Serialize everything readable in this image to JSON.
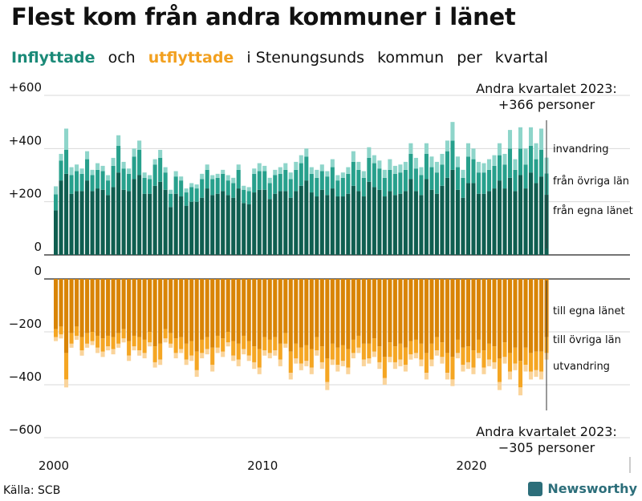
{
  "title": "Flest kom från andra kommuner i länet",
  "subtitle": {
    "part1": "Inflyttade",
    "part2": "och",
    "part3": "utflyttade",
    "part4": "i Stenungsunds",
    "part5": "kommun",
    "part6": "per",
    "part7": "kvartal"
  },
  "source": "Källa: SCB",
  "brand": "Newsworthy",
  "annotations": {
    "top_line1": "Andra kvartalet 2023:",
    "top_line2": "+366 personer",
    "bottom_line1": "Andra kvartalet 2023:",
    "bottom_line2": "−305 personer"
  },
  "colors": {
    "in_local": "#0f5e50",
    "in_county": "#27a08c",
    "in_immigration": "#8ed5ca",
    "out_local": "#d98405",
    "out_county": "#f5a623",
    "out_emigration": "#fad49b",
    "subtitle_in": "#1b8a78",
    "subtitle_out": "#f2a01f"
  },
  "chart_data": {
    "type": "bar",
    "stacked": true,
    "x_start": "2000 Q1",
    "x_end": "2023 Q2",
    "quarters_per_year": 4,
    "x_ticks": [
      "2000",
      "2010",
      "2020"
    ],
    "y_ticks": [
      "+600",
      "+400",
      "+200",
      "0",
      "0",
      "−200",
      "−400",
      "−600"
    ],
    "ylim_in": [
      0,
      600
    ],
    "ylim_out": [
      -600,
      0
    ],
    "grid": true,
    "legend_in": [
      "invandring",
      "från övriga län",
      "från egna länet"
    ],
    "legend_out": [
      "till egna länet",
      "till övriga län",
      "utvandring"
    ],
    "inflow_totals": [
      258,
      380,
      475,
      330,
      340,
      325,
      390,
      320,
      345,
      335,
      300,
      365,
      450,
      350,
      325,
      400,
      430,
      310,
      300,
      360,
      395,
      330,
      245,
      315,
      295,
      250,
      270,
      265,
      305,
      340,
      300,
      305,
      320,
      300,
      290,
      340,
      260,
      255,
      325,
      345,
      335,
      290,
      320,
      330,
      345,
      310,
      350,
      375,
      400,
      330,
      320,
      340,
      315,
      360,
      300,
      310,
      330,
      390,
      350,
      315,
      405,
      375,
      355,
      320,
      360,
      335,
      340,
      350,
      420,
      365,
      330,
      420,
      370,
      350,
      380,
      430,
      500,
      370,
      320,
      420,
      400,
      350,
      345,
      360,
      375,
      420,
      380,
      470,
      360,
      480,
      400,
      480,
      420,
      475,
      366
    ],
    "inflow_immigration": [
      30,
      25,
      80,
      30,
      25,
      20,
      30,
      20,
      25,
      20,
      20,
      30,
      40,
      25,
      20,
      30,
      35,
      20,
      15,
      20,
      30,
      20,
      15,
      20,
      15,
      15,
      15,
      15,
      20,
      20,
      15,
      15,
      15,
      20,
      20,
      20,
      15,
      15,
      20,
      30,
      20,
      20,
      20,
      25,
      25,
      25,
      30,
      30,
      30,
      25,
      30,
      25,
      20,
      30,
      20,
      20,
      25,
      40,
      30,
      25,
      40,
      30,
      30,
      30,
      40,
      30,
      30,
      30,
      40,
      40,
      30,
      40,
      40,
      40,
      40,
      40,
      70,
      40,
      30,
      50,
      40,
      40,
      35,
      40,
      40,
      45,
      40,
      70,
      40,
      80,
      60,
      70,
      60,
      80,
      60
    ],
    "inflow_county": [
      60,
      75,
      90,
      70,
      75,
      65,
      80,
      60,
      70,
      70,
      55,
      80,
      100,
      80,
      65,
      85,
      95,
      60,
      55,
      80,
      90,
      65,
      50,
      65,
      60,
      50,
      55,
      50,
      70,
      70,
      60,
      60,
      65,
      55,
      55,
      70,
      50,
      50,
      70,
      70,
      70,
      60,
      70,
      65,
      80,
      70,
      80,
      85,
      90,
      70,
      70,
      70,
      70,
      80,
      60,
      70,
      75,
      90,
      80,
      70,
      90,
      90,
      80,
      70,
      80,
      80,
      80,
      80,
      95,
      85,
      75,
      95,
      85,
      80,
      80,
      100,
      110,
      85,
      75,
      100,
      90,
      80,
      80,
      80,
      85,
      95,
      90,
      110,
      80,
      100,
      90,
      100,
      90,
      100,
      80
    ],
    "outflow_totals": [
      235,
      225,
      410,
      260,
      230,
      290,
      260,
      250,
      280,
      295,
      270,
      285,
      260,
      240,
      310,
      270,
      290,
      300,
      255,
      335,
      325,
      240,
      260,
      300,
      280,
      325,
      310,
      370,
      300,
      285,
      350,
      280,
      295,
      255,
      310,
      330,
      285,
      310,
      340,
      360,
      290,
      300,
      290,
      330,
      260,
      380,
      320,
      345,
      330,
      360,
      290,
      340,
      420,
      325,
      350,
      330,
      360,
      300,
      280,
      330,
      320,
      295,
      340,
      400,
      315,
      340,
      330,
      350,
      305,
      300,
      330,
      380,
      330,
      290,
      320,
      380,
      405,
      300,
      350,
      340,
      360,
      300,
      360,
      330,
      340,
      420,
      320,
      380,
      345,
      440,
      350,
      380,
      370,
      380,
      305
    ],
    "outflow_emigration": [
      15,
      15,
      30,
      15,
      15,
      20,
      15,
      15,
      20,
      20,
      15,
      20,
      15,
      15,
      20,
      15,
      20,
      20,
      15,
      20,
      20,
      15,
      15,
      20,
      15,
      20,
      20,
      25,
      20,
      20,
      25,
      20,
      20,
      15,
      20,
      25,
      20,
      20,
      25,
      25,
      20,
      20,
      20,
      25,
      15,
      25,
      20,
      25,
      20,
      25,
      20,
      25,
      30,
      20,
      25,
      20,
      25,
      20,
      20,
      25,
      20,
      20,
      25,
      25,
      20,
      25,
      25,
      25,
      20,
      20,
      25,
      25,
      25,
      20,
      25,
      25,
      25,
      20,
      25,
      25,
      25,
      20,
      25,
      25,
      25,
      30,
      25,
      30,
      25,
      30,
      25,
      30,
      25,
      30,
      25
    ],
    "outflow_county": [
      30,
      30,
      100,
      40,
      35,
      50,
      40,
      35,
      45,
      50,
      40,
      45,
      40,
      35,
      55,
      40,
      50,
      50,
      40,
      60,
      60,
      35,
      40,
      55,
      45,
      60,
      55,
      70,
      50,
      45,
      65,
      45,
      50,
      40,
      55,
      60,
      50,
      55,
      60,
      70,
      50,
      50,
      50,
      60,
      40,
      80,
      55,
      60,
      60,
      70,
      50,
      60,
      90,
      60,
      65,
      60,
      70,
      50,
      45,
      60,
      55,
      50,
      60,
      80,
      55,
      60,
      60,
      65,
      50,
      50,
      60,
      75,
      60,
      50,
      55,
      75,
      85,
      50,
      65,
      60,
      65,
      50,
      65,
      60,
      60,
      90,
      55,
      70,
      60,
      100,
      65,
      70,
      70,
      75,
      60
    ]
  }
}
